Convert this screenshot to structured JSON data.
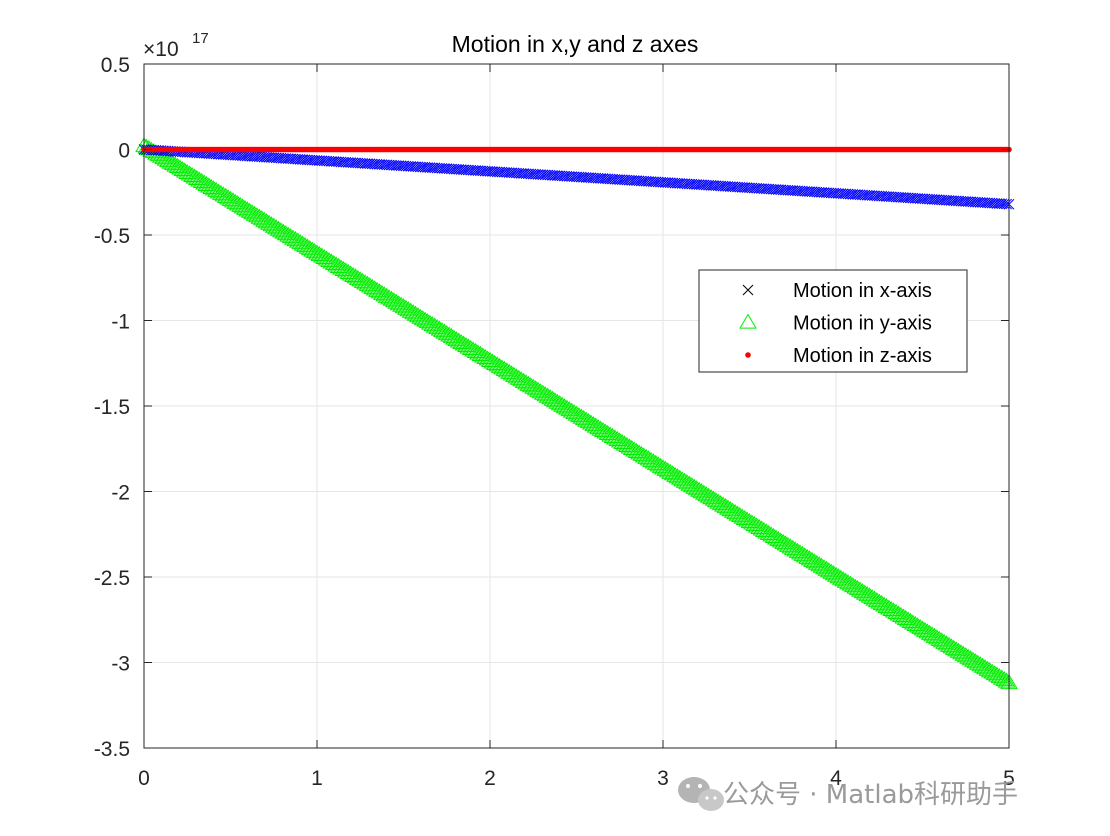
{
  "chart_data": {
    "type": "scatter",
    "title": "Motion in x,y and z axes",
    "xlabel": "",
    "ylabel": "",
    "xlim": [
      0,
      5
    ],
    "ylim": [
      -3.5,
      0.5
    ],
    "y_exponent_base": "×10",
    "y_exponent": "17",
    "grid": true,
    "legend_position": "right-center",
    "x_ticks": [
      "0",
      "1",
      "2",
      "3",
      "4",
      "5"
    ],
    "y_ticks": [
      "0.5",
      "0",
      "-0.5",
      "-1",
      "-1.5",
      "-2",
      "-2.5",
      "-3",
      "-3.5"
    ],
    "series": [
      {
        "name": "Motion in x-axis",
        "marker": "x",
        "color": "#0000ff",
        "x_start": 0,
        "x_end": 5,
        "y_start": 0.0,
        "y_end": -0.32
      },
      {
        "name": "Motion in y-axis",
        "marker": "triangle",
        "color": "#00ee00",
        "x_start": 0,
        "x_end": 5,
        "y_start": 0.02,
        "y_end": -3.12
      },
      {
        "name": "Motion in z-axis",
        "marker": "dot",
        "color": "#ff0000",
        "x_start": 0,
        "x_end": 5,
        "y_start": 0.0,
        "y_end": 0.0
      }
    ]
  },
  "watermark": {
    "text": "公众号 · Matlab科研助手",
    "icon": "wechat-icon"
  }
}
